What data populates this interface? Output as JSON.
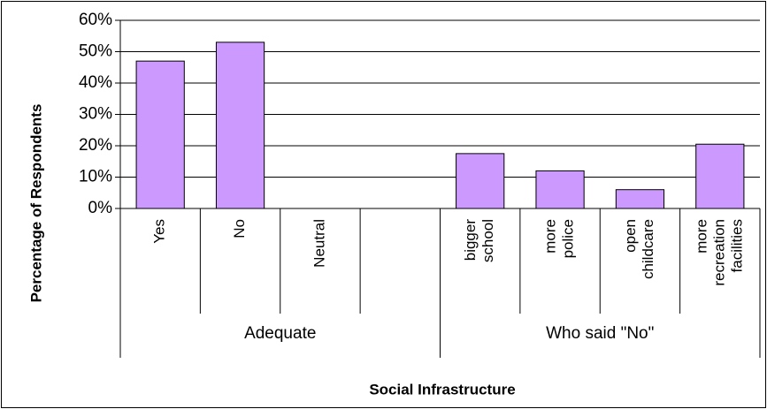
{
  "chart_data": {
    "type": "bar",
    "xlabel": "Social Infrastructure",
    "ylabel": "Percentage of Respondents",
    "ylim": [
      0,
      0.6
    ],
    "yticks": [
      "0%",
      "10%",
      "20%",
      "30%",
      "40%",
      "50%",
      "60%"
    ],
    "grid": true,
    "legend": "none",
    "bar_color": "#cc99ff",
    "groups": [
      {
        "name": "Adequate",
        "categories": [
          [
            "Yes"
          ],
          [
            "No"
          ],
          [
            "Neutral"
          ],
          [
            ""
          ]
        ]
      },
      {
        "name": "Who said \"No\"",
        "categories": [
          [
            "bigger",
            "school"
          ],
          [
            "more",
            "police"
          ],
          [
            "open",
            "childcare"
          ],
          [
            "more",
            "recreation",
            "facilities"
          ]
        ]
      }
    ],
    "values": [
      0.47,
      0.53,
      null,
      null,
      0.175,
      0.12,
      0.06,
      0.205
    ]
  }
}
